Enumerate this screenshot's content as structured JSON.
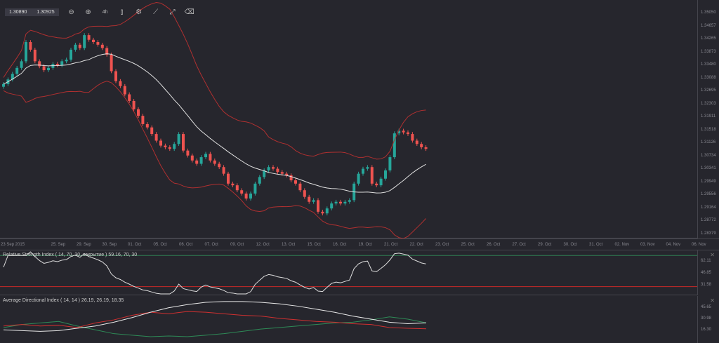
{
  "toolbar": {
    "bid": "1.30890",
    "ask": "1.30925",
    "tools": [
      "zoom-out-icon",
      "zoom-in-icon",
      "timeframe-icon",
      "candle-type-icon",
      "settings-icon",
      "indicators-icon",
      "drawing-icon",
      "eraser-icon"
    ],
    "timeframe_label": "4h"
  },
  "price_axis": [
    "1.35050",
    "1.34657",
    "1.34265",
    "1.33873",
    "1.33480",
    "1.33088",
    "1.32695",
    "1.32303",
    "1.31911",
    "1.31518",
    "1.31126",
    "1.30734",
    "1.30341",
    "1.29949",
    "1.29556",
    "1.29164",
    "1.28772",
    "1.28379"
  ],
  "date_axis": [
    "23 Sep 2015",
    "25. Sep",
    "29. Sep",
    "30. Sep",
    "01. Oct",
    "05. Oct",
    "06. Oct",
    "07. Oct",
    "09. Oct",
    "12. Oct",
    "13. Oct",
    "15. Oct",
    "16. Oct",
    "19. Oct",
    "21. Oct",
    "22. Oct",
    "23. Oct",
    "25. Oct",
    "26. Oct",
    "27. Oct",
    "29. Oct",
    "30. Oct",
    "31. Oct",
    "02. Nov",
    "03. Nov",
    "04. Nov",
    "06. Nov"
  ],
  "colors": {
    "up": "#26a69a",
    "down": "#ef5350",
    "band": "#b03030",
    "ma": "#e0e0e0",
    "rsi_upper": "#2e7d52",
    "rsi_lower": "#c62828",
    "plus_di": "#2e8b57",
    "minus_di": "#d03030",
    "adx": "#e8e8e8"
  },
  "closes": [
    1.3291,
    1.3305,
    1.3322,
    1.334,
    1.336,
    1.3418,
    1.3395,
    1.336,
    1.3345,
    1.3333,
    1.334,
    1.3352,
    1.3348,
    1.336,
    1.3365,
    1.3395,
    1.341,
    1.34,
    1.3439,
    1.3425,
    1.3418,
    1.341,
    1.34,
    1.338,
    1.333,
    1.33,
    1.3285,
    1.326,
    1.324,
    1.3215,
    1.3195,
    1.317,
    1.316,
    1.314,
    1.312,
    1.3105,
    1.31,
    1.3095,
    1.311,
    1.314,
    1.309,
    1.3075,
    1.306,
    1.305,
    1.307,
    1.308,
    1.306,
    1.305,
    1.304,
    1.302,
    1.299,
    1.2985,
    1.297,
    1.296,
    1.2945,
    1.296,
    1.299,
    1.301,
    1.303,
    1.304,
    1.3035,
    1.3025,
    1.302,
    1.3015,
    1.3,
    1.299,
    1.297,
    1.295,
    1.2935,
    1.294,
    1.2905,
    1.29,
    1.2915,
    1.293,
    1.2935,
    1.293,
    1.2935,
    1.294,
    1.299,
    1.302,
    1.3035,
    1.304,
    1.299,
    1.2985,
    1.3005,
    1.303,
    1.307,
    1.3142,
    1.315,
    1.3145,
    1.314,
    1.312,
    1.311,
    1.31,
    1.3095
  ],
  "rsi": {
    "label": "Relative Strength Index ( 14, 70, 30, закрытие ) 59.16, 70, 30",
    "axis": [
      "62.11",
      "46.85",
      "31.58"
    ],
    "levels": [
      70,
      30
    ]
  },
  "adx": {
    "label": "Average Directional Index ( 14, 14 ) 26.19, 26.19, 18.35",
    "axis": [
      "45.65",
      "30.98",
      "16.30"
    ],
    "adx": [
      17,
      16,
      15,
      16,
      19,
      22,
      27,
      33,
      40,
      46,
      50,
      53,
      54,
      54,
      53,
      51,
      48,
      44,
      40,
      35,
      31,
      27,
      25,
      26.19
    ],
    "minus_di": [
      22,
      24,
      22,
      23,
      20,
      26,
      30,
      36,
      40,
      38,
      41,
      40,
      38,
      36,
      35,
      32,
      30,
      28,
      27,
      25,
      24,
      20,
      19,
      18.35
    ],
    "plus_di": [
      20,
      24,
      26,
      28,
      22,
      17,
      12,
      10,
      8,
      9,
      8,
      10,
      12,
      15,
      18,
      20,
      22,
      24,
      26,
      27,
      30,
      34,
      31,
      26.19
    ]
  }
}
